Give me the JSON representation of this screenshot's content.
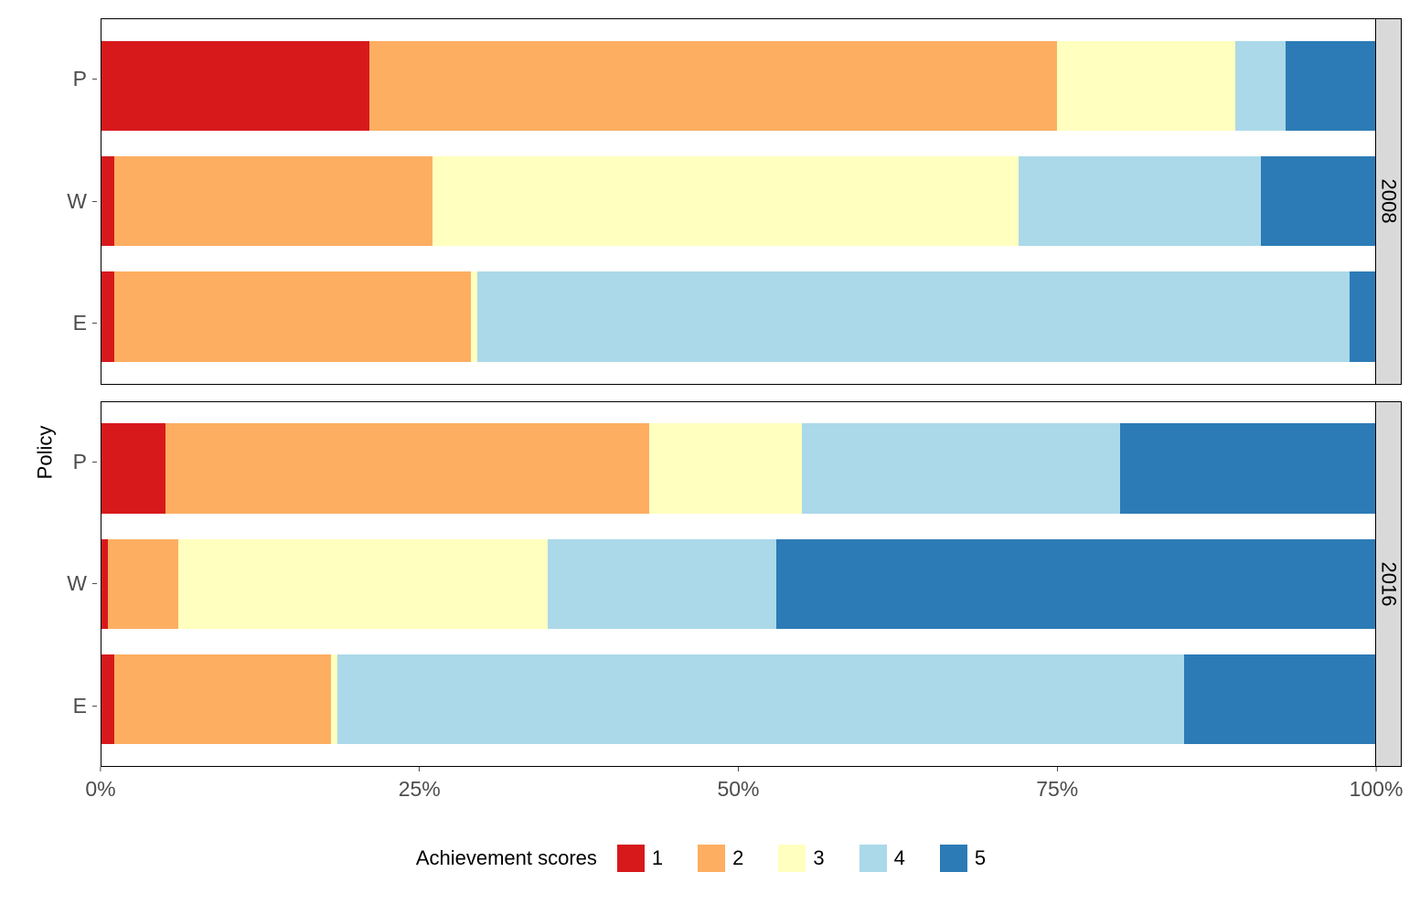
{
  "chart": {
    "type": "stacked-bar-faceted",
    "y_axis_label": "Policy",
    "legend_title": "Achievement scores",
    "background_color": "#ffffff",
    "panel_border_color": "#000000",
    "strip_background_color": "#d9d9d9",
    "tick_color": "#4d4d4d",
    "label_fontsize": 22,
    "tick_fontsize": 23,
    "xlim": [
      0,
      100
    ],
    "x_ticks": [
      {
        "pos": 0,
        "label": "0%"
      },
      {
        "pos": 25,
        "label": "25%"
      },
      {
        "pos": 50,
        "label": "50%"
      },
      {
        "pos": 75,
        "label": "75%"
      },
      {
        "pos": 100,
        "label": "100%"
      }
    ],
    "scores": [
      {
        "key": "1",
        "color": "#d7191c",
        "label": "1"
      },
      {
        "key": "2",
        "color": "#fdae61",
        "label": "2"
      },
      {
        "key": "3",
        "color": "#ffffbf",
        "label": "3"
      },
      {
        "key": "4",
        "color": "#abd9e9",
        "label": "4"
      },
      {
        "key": "5",
        "color": "#2c7bb6",
        "label": "5"
      }
    ],
    "facets": [
      {
        "label": "2008",
        "policies": [
          {
            "label": "P",
            "segments": [
              21,
              54,
              14,
              4,
              7
            ]
          },
          {
            "label": "W",
            "segments": [
              1,
              25,
              46,
              19,
              9
            ]
          },
          {
            "label": "E",
            "segments": [
              1,
              28,
              0.5,
              68.5,
              2
            ]
          }
        ]
      },
      {
        "label": "2016",
        "policies": [
          {
            "label": "P",
            "segments": [
              5,
              38,
              12,
              25,
              20
            ]
          },
          {
            "label": "W",
            "segments": [
              0.5,
              5.5,
              29,
              18,
              47
            ]
          },
          {
            "label": "E",
            "segments": [
              1,
              17,
              0.5,
              66.5,
              15
            ]
          }
        ]
      }
    ]
  }
}
